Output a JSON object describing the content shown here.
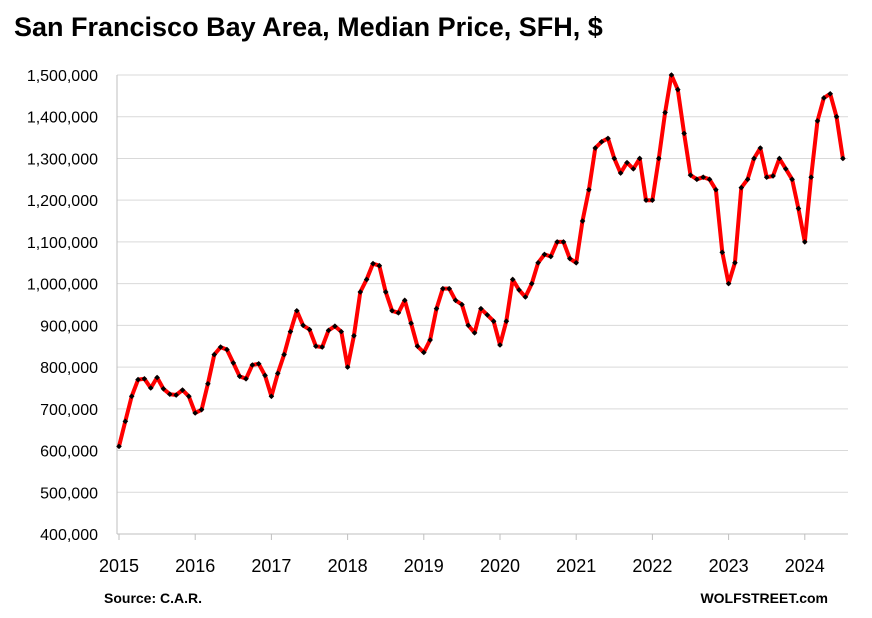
{
  "chart_data": {
    "type": "line",
    "title": "San Francisco Bay Area, Median Price, SFH, $",
    "xlabel": "",
    "ylabel": "",
    "ylim": [
      400000,
      1500000
    ],
    "y_ticks": [
      "400,000",
      "500,000",
      "600,000",
      "700,000",
      "800,000",
      "900,000",
      "1,000,000",
      "1,100,000",
      "1,200,000",
      "1,300,000",
      "1,400,000",
      "1,500,000"
    ],
    "x_ticks": [
      "2015",
      "2016",
      "2017",
      "2018",
      "2019",
      "2020",
      "2021",
      "2022",
      "2023",
      "2024"
    ],
    "grid": true,
    "line_color": "#ff0000",
    "marker_color": "#000000",
    "series": [
      {
        "name": "Median Price, SFH",
        "start": "2015-01",
        "frequency": "monthly",
        "values": [
          610000,
          670000,
          730000,
          770000,
          772000,
          750000,
          775000,
          748000,
          735000,
          733000,
          745000,
          730000,
          690000,
          698000,
          760000,
          830000,
          848000,
          842000,
          810000,
          778000,
          772000,
          805000,
          808000,
          780000,
          730000,
          785000,
          830000,
          885000,
          935000,
          900000,
          890000,
          850000,
          848000,
          888000,
          898000,
          885000,
          800000,
          875000,
          980000,
          1010000,
          1048000,
          1043000,
          980000,
          935000,
          930000,
          960000,
          905000,
          850000,
          835000,
          865000,
          940000,
          988000,
          988000,
          960000,
          950000,
          900000,
          882000,
          940000,
          925000,
          910000,
          853000,
          910000,
          1010000,
          985000,
          968000,
          1000000,
          1050000,
          1070000,
          1065000,
          1100000,
          1100000,
          1060000,
          1050000,
          1150000,
          1225000,
          1325000,
          1340000,
          1348000,
          1300000,
          1265000,
          1290000,
          1275000,
          1300000,
          1200000,
          1200000,
          1300000,
          1410000,
          1500000,
          1465000,
          1360000,
          1260000,
          1250000,
          1255000,
          1250000,
          1225000,
          1075000,
          1000000,
          1050000,
          1230000,
          1250000,
          1300000,
          1325000,
          1255000,
          1258000,
          1300000,
          1275000,
          1250000,
          1180000,
          1100000,
          1255000,
          1390000,
          1445000,
          1455000,
          1400000,
          1300000
        ]
      }
    ]
  },
  "footer": {
    "source": "Source: C.A.R.",
    "brand": "WOLFSTREET.com"
  }
}
